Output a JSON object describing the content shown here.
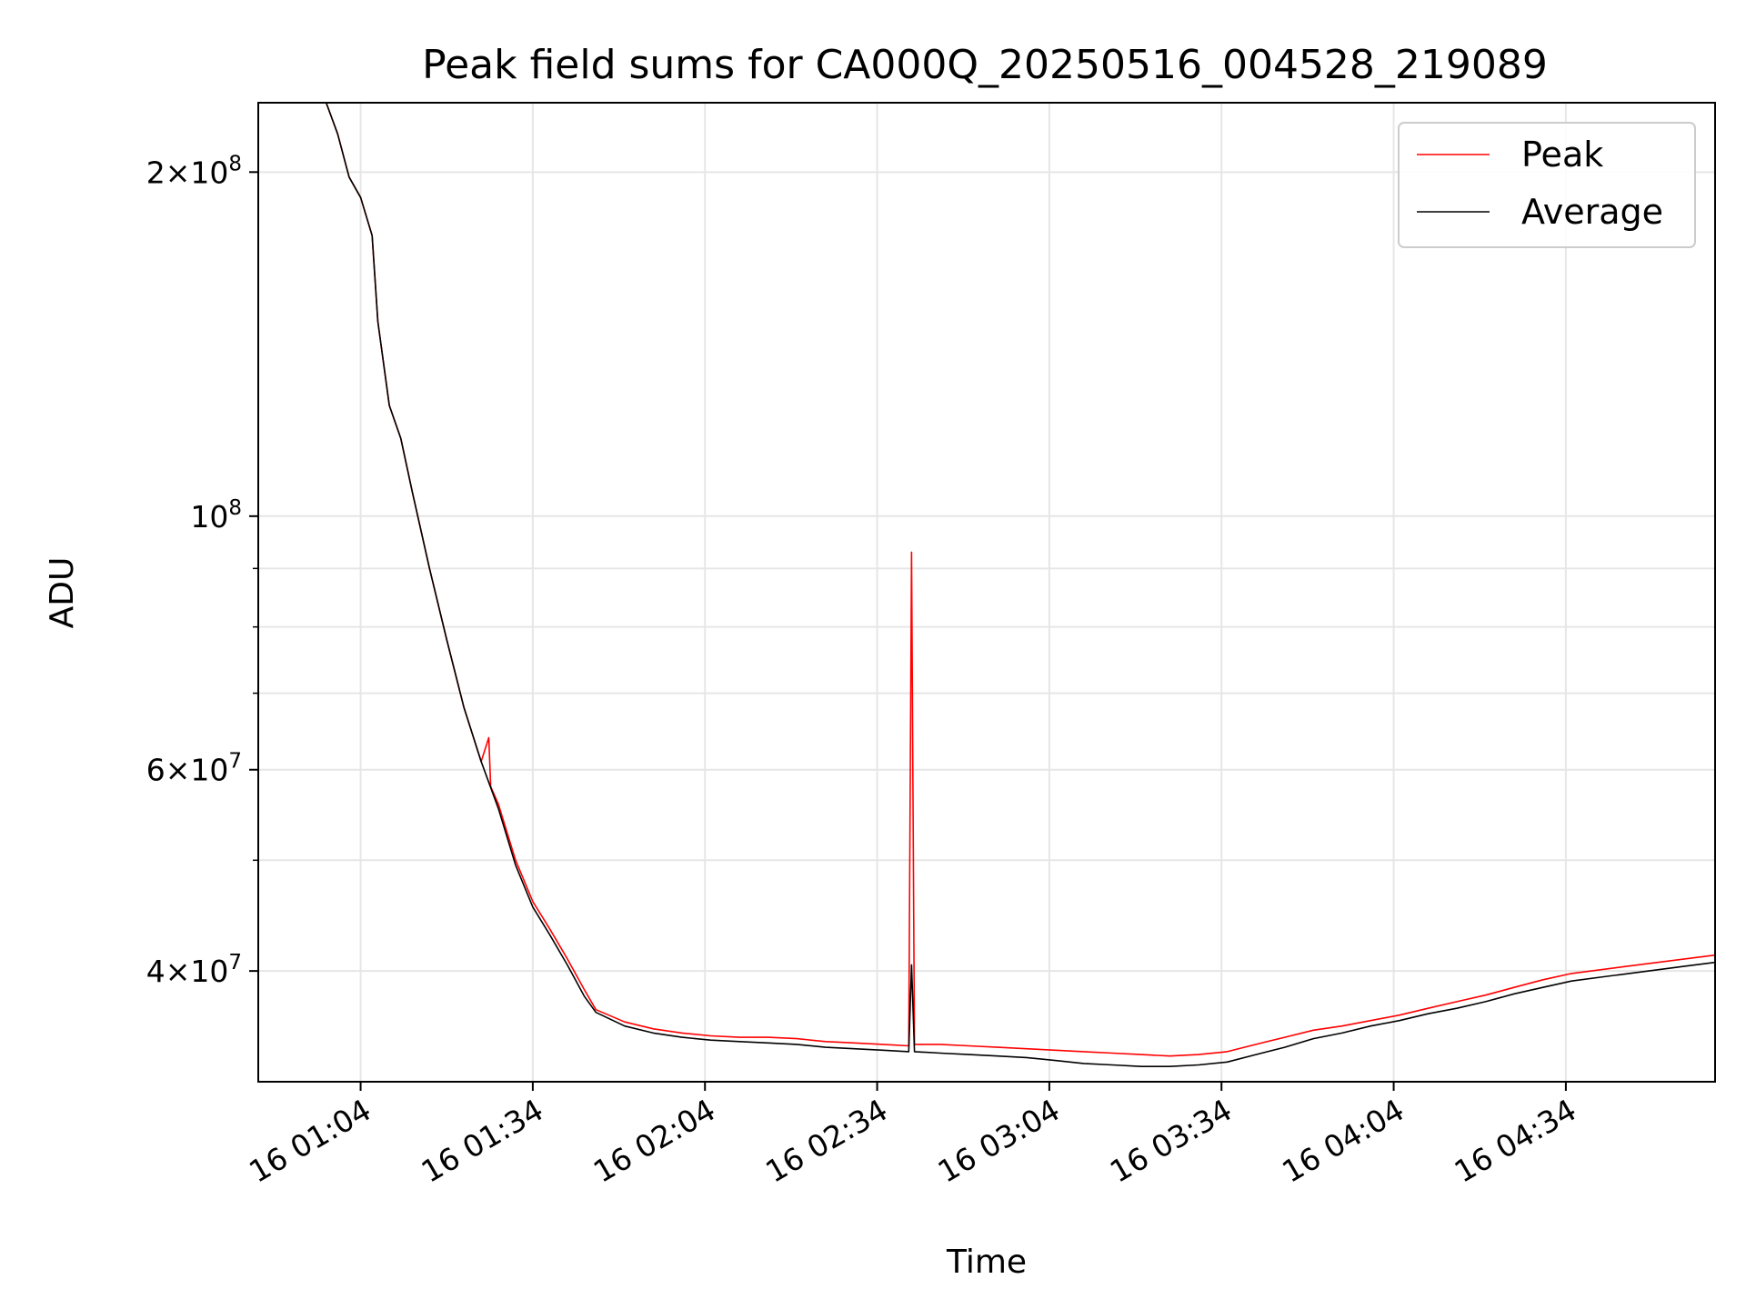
{
  "chart_data": {
    "type": "line",
    "title": "Peak field sums for CA000Q_20250516_004528_219089",
    "xlabel": "Time",
    "ylabel": "ADU",
    "yscale": "log",
    "ylim": [
      32000000,
      230000000
    ],
    "xlim": [
      "16 00:46:10",
      "16 05:00:00"
    ],
    "x_ticks": [
      {
        "time": "16 01:04",
        "label": "16 01:04"
      },
      {
        "time": "16 01:34",
        "label": "16 01:34"
      },
      {
        "time": "16 02:04",
        "label": "16 02:04"
      },
      {
        "time": "16 02:34",
        "label": "16 02:34"
      },
      {
        "time": "16 03:04",
        "label": "16 03:04"
      },
      {
        "time": "16 03:34",
        "label": "16 03:34"
      },
      {
        "time": "16 04:04",
        "label": "16 04:04"
      },
      {
        "time": "16 04:34",
        "label": "16 04:34"
      }
    ],
    "y_ticks": [
      {
        "value": 200000000,
        "mantissa": "2",
        "exponent": "8"
      },
      {
        "value": 100000000,
        "mantissa": "",
        "exponent": "8"
      },
      {
        "value": 60000000,
        "mantissa": "6",
        "exponent": "7"
      },
      {
        "value": 40000000,
        "mantissa": "4",
        "exponent": "7"
      }
    ],
    "y_minor_ticks": [
      90000000,
      80000000,
      70000000,
      50000000
    ],
    "grid": true,
    "legend": {
      "placement": "top-right"
    },
    "series": [
      {
        "name": "Peak",
        "color": "#ff0000",
        "points": [
          [
            "16 00:58:00",
            230000000
          ],
          [
            "16 01:00:00",
            216000000
          ],
          [
            "16 01:02:00",
            198000000
          ],
          [
            "16 01:04:00",
            190000000
          ],
          [
            "16 01:06:00",
            176000000
          ],
          [
            "16 01:07:00",
            148000000
          ],
          [
            "16 01:09:00",
            125000000
          ],
          [
            "16 01:11:00",
            117000000
          ],
          [
            "16 01:13:00",
            105000000
          ],
          [
            "16 01:16:00",
            90000000
          ],
          [
            "16 01:19:00",
            78000000
          ],
          [
            "16 01:22:00",
            68000000
          ],
          [
            "16 01:25:00",
            61000000
          ],
          [
            "16 01:26:20",
            64000000
          ],
          [
            "16 01:26:40",
            58000000
          ],
          [
            "16 01:28:00",
            56000000
          ],
          [
            "16 01:31:00",
            50000000
          ],
          [
            "16 01:34:00",
            46000000
          ],
          [
            "16 01:37:00",
            43500000
          ],
          [
            "16 01:40:00",
            41000000
          ],
          [
            "16 01:43:00",
            38500000
          ],
          [
            "16 01:45:00",
            37000000
          ],
          [
            "16 01:50:00",
            36100000
          ],
          [
            "16 01:55:00",
            35600000
          ],
          [
            "16 02:00:00",
            35300000
          ],
          [
            "16 02:05:00",
            35100000
          ],
          [
            "16 02:10:00",
            35000000
          ],
          [
            "16 02:15:00",
            35000000
          ],
          [
            "16 02:20:00",
            34900000
          ],
          [
            "16 02:25:00",
            34700000
          ],
          [
            "16 02:30:00",
            34600000
          ],
          [
            "16 02:35:00",
            34500000
          ],
          [
            "16 02:39:30",
            34400000
          ],
          [
            "16 02:40:00",
            93000000
          ],
          [
            "16 02:40:30",
            34500000
          ],
          [
            "16 02:45:00",
            34500000
          ],
          [
            "16 02:50:00",
            34400000
          ],
          [
            "16 02:55:00",
            34300000
          ],
          [
            "16 03:00:00",
            34200000
          ],
          [
            "16 03:05:00",
            34100000
          ],
          [
            "16 03:10:00",
            34000000
          ],
          [
            "16 03:15:00",
            33900000
          ],
          [
            "16 03:20:00",
            33800000
          ],
          [
            "16 03:25:00",
            33700000
          ],
          [
            "16 03:30:00",
            33800000
          ],
          [
            "16 03:35:00",
            34000000
          ],
          [
            "16 03:40:00",
            34500000
          ],
          [
            "16 03:45:00",
            35000000
          ],
          [
            "16 03:50:00",
            35500000
          ],
          [
            "16 03:55:00",
            35800000
          ],
          [
            "16 04:00:00",
            36200000
          ],
          [
            "16 04:05:00",
            36600000
          ],
          [
            "16 04:10:00",
            37100000
          ],
          [
            "16 04:15:00",
            37600000
          ],
          [
            "16 04:20:00",
            38100000
          ],
          [
            "16 04:25:00",
            38700000
          ],
          [
            "16 04:30:00",
            39300000
          ],
          [
            "16 04:35:00",
            39800000
          ],
          [
            "16 04:40:00",
            40100000
          ],
          [
            "16 04:45:00",
            40400000
          ],
          [
            "16 04:50:00",
            40700000
          ],
          [
            "16 04:55:00",
            41000000
          ],
          [
            "16 05:00:00",
            41300000
          ]
        ]
      },
      {
        "name": "Average",
        "color": "#000000",
        "points": [
          [
            "16 00:58:00",
            230000000
          ],
          [
            "16 01:00:00",
            216000000
          ],
          [
            "16 01:02:00",
            198000000
          ],
          [
            "16 01:04:00",
            190000000
          ],
          [
            "16 01:06:00",
            176000000
          ],
          [
            "16 01:07:00",
            148000000
          ],
          [
            "16 01:09:00",
            125000000
          ],
          [
            "16 01:11:00",
            117000000
          ],
          [
            "16 01:13:00",
            105000000
          ],
          [
            "16 01:16:00",
            90000000
          ],
          [
            "16 01:19:00",
            78000000
          ],
          [
            "16 01:22:00",
            68000000
          ],
          [
            "16 01:25:00",
            61000000
          ],
          [
            "16 01:28:00",
            55500000
          ],
          [
            "16 01:31:00",
            49500000
          ],
          [
            "16 01:34:00",
            45500000
          ],
          [
            "16 01:37:00",
            43000000
          ],
          [
            "16 01:40:00",
            40500000
          ],
          [
            "16 01:43:00",
            38000000
          ],
          [
            "16 01:45:00",
            36800000
          ],
          [
            "16 01:50:00",
            35800000
          ],
          [
            "16 01:55:00",
            35300000
          ],
          [
            "16 02:00:00",
            35000000
          ],
          [
            "16 02:05:00",
            34800000
          ],
          [
            "16 02:10:00",
            34700000
          ],
          [
            "16 02:15:00",
            34600000
          ],
          [
            "16 02:20:00",
            34500000
          ],
          [
            "16 02:25:00",
            34300000
          ],
          [
            "16 02:30:00",
            34200000
          ],
          [
            "16 02:35:00",
            34100000
          ],
          [
            "16 02:39:30",
            34000000
          ],
          [
            "16 02:40:00",
            40500000
          ],
          [
            "16 02:40:30",
            34000000
          ],
          [
            "16 02:45:00",
            33900000
          ],
          [
            "16 02:50:00",
            33800000
          ],
          [
            "16 02:55:00",
            33700000
          ],
          [
            "16 03:00:00",
            33600000
          ],
          [
            "16 03:05:00",
            33400000
          ],
          [
            "16 03:10:00",
            33200000
          ],
          [
            "16 03:15:00",
            33100000
          ],
          [
            "16 03:20:00",
            33000000
          ],
          [
            "16 03:25:00",
            33000000
          ],
          [
            "16 03:30:00",
            33100000
          ],
          [
            "16 03:35:00",
            33300000
          ],
          [
            "16 03:40:00",
            33800000
          ],
          [
            "16 03:45:00",
            34300000
          ],
          [
            "16 03:50:00",
            34900000
          ],
          [
            "16 03:55:00",
            35300000
          ],
          [
            "16 04:00:00",
            35800000
          ],
          [
            "16 04:05:00",
            36200000
          ],
          [
            "16 04:10:00",
            36700000
          ],
          [
            "16 04:15:00",
            37100000
          ],
          [
            "16 04:20:00",
            37600000
          ],
          [
            "16 04:25:00",
            38200000
          ],
          [
            "16 04:30:00",
            38700000
          ],
          [
            "16 04:35:00",
            39200000
          ],
          [
            "16 04:40:00",
            39500000
          ],
          [
            "16 04:45:00",
            39800000
          ],
          [
            "16 04:50:00",
            40100000
          ],
          [
            "16 04:55:00",
            40400000
          ],
          [
            "16 05:00:00",
            40700000
          ]
        ]
      }
    ]
  }
}
